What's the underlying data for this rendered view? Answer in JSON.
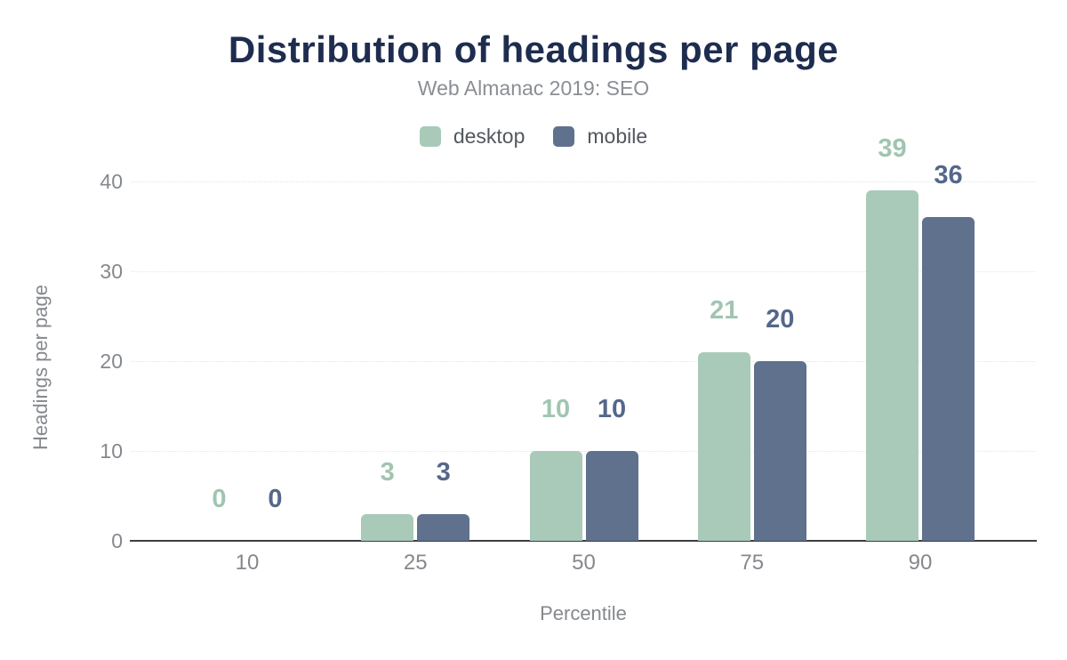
{
  "chart_data": {
    "type": "bar",
    "title": "Distribution of headings per page",
    "subtitle": "Web Almanac 2019: SEO",
    "xlabel": "Percentile",
    "ylabel": "Headings per page",
    "categories": [
      "10",
      "25",
      "50",
      "75",
      "90"
    ],
    "series": [
      {
        "name": "desktop",
        "color": "#a9cab8",
        "label_color": "#a0c5b1",
        "values": [
          0,
          3,
          10,
          21,
          39
        ]
      },
      {
        "name": "mobile",
        "color": "#5f718c",
        "label_color": "#55678a",
        "values": [
          0,
          3,
          10,
          20,
          36
        ]
      }
    ],
    "ylim": [
      0,
      40
    ],
    "ytick_step": 10,
    "ytick_labels": [
      "0",
      "10",
      "20",
      "30",
      "40"
    ],
    "grid": true,
    "legend_position": "top"
  },
  "colors": {
    "background": "#ffffff",
    "title_text": "#1e2d4f",
    "subtitle_text": "#8b8e94",
    "legend_text": "#53575e",
    "axis_text": "#85888d",
    "axis_line": "#3c3e42",
    "gridline": "#e3e5e8",
    "desktop_series": "#a9cab8",
    "mobile_series": "#5f718c"
  }
}
